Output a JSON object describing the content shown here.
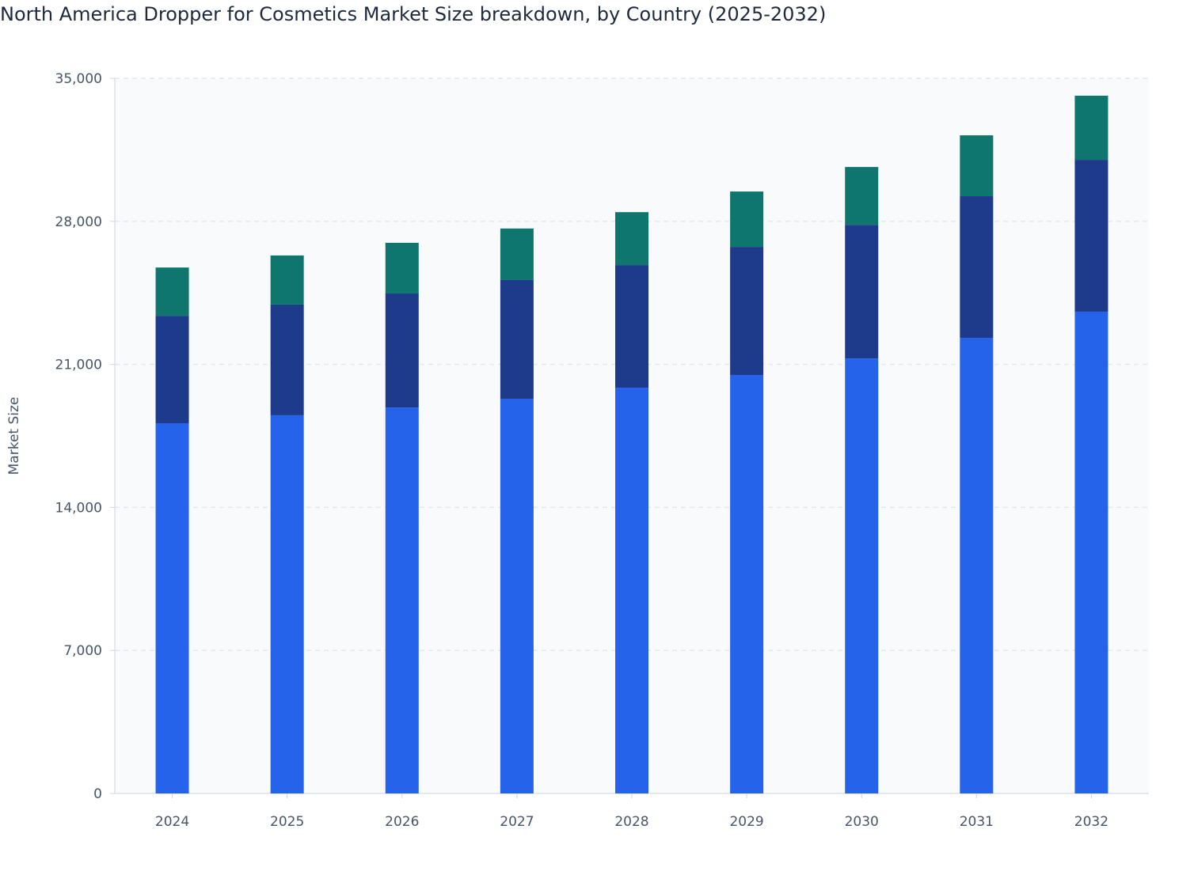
{
  "chart_data": {
    "type": "bar",
    "stacked": true,
    "title": "North America Dropper for Cosmetics Market Size breakdown, by Country (2025-2032)",
    "xlabel": "",
    "ylabel": "Market Size",
    "ylim": [
      0,
      35000
    ],
    "yticks": [
      0,
      7000,
      14000,
      21000,
      28000,
      35000
    ],
    "ytick_labels": [
      "0",
      "7,000",
      "14,000",
      "21,000",
      "28,000",
      "35,000"
    ],
    "grid": true,
    "categories": [
      "2024",
      "2025",
      "2026",
      "2027",
      "2028",
      "2029",
      "2030",
      "2031",
      "2032"
    ],
    "series": [
      {
        "color": "#2563eb",
        "values": [
          18120,
          18510,
          18890,
          19320,
          19860,
          20480,
          21290,
          22300,
          23580
        ]
      },
      {
        "color": "#1e3a8a",
        "values": [
          5260,
          5420,
          5580,
          5810,
          6000,
          6270,
          6540,
          6930,
          7430
        ]
      },
      {
        "color": "#0f766e",
        "values": [
          2360,
          2400,
          2480,
          2520,
          2590,
          2710,
          2830,
          2980,
          3140
        ]
      }
    ]
  }
}
